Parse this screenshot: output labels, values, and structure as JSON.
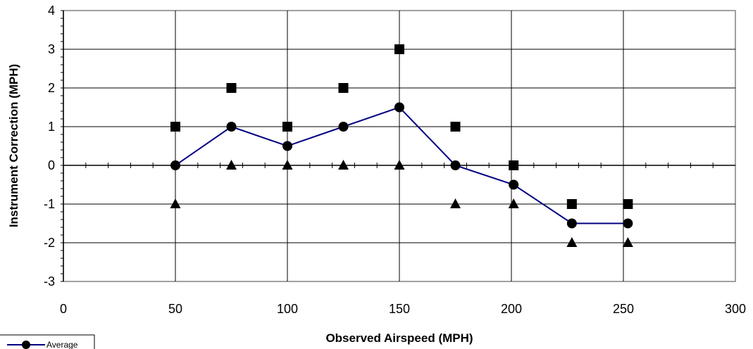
{
  "chart_data": {
    "type": "line",
    "title": "",
    "xlabel": "Observed Airspeed (MPH)",
    "ylabel": "Instrument Correction (MPH)",
    "xlim": [
      0,
      300
    ],
    "ylim": [
      -3,
      4
    ],
    "x_ticks": [
      "0",
      "50",
      "100",
      "150",
      "200",
      "250",
      "300"
    ],
    "y_ticks": [
      "-3",
      "-2",
      "-1",
      "0",
      "1",
      "2",
      "3",
      "4"
    ],
    "grid": true,
    "legend_position": "bottom-left",
    "series": [
      {
        "name": "Average",
        "marker": "circle",
        "line": true,
        "color": "#000080",
        "points": [
          [
            50,
            0
          ],
          [
            75,
            1
          ],
          [
            100,
            0.5
          ],
          [
            125,
            1
          ],
          [
            150,
            1.5
          ],
          [
            175,
            0
          ],
          [
            201,
            -0.5
          ],
          [
            227,
            -1.5
          ],
          [
            252,
            -1.5
          ]
        ]
      },
      {
        "name": "",
        "marker": "square",
        "line": false,
        "color": "#000000",
        "points": [
          [
            50,
            1
          ],
          [
            75,
            2
          ],
          [
            100,
            1
          ],
          [
            125,
            2
          ],
          [
            150,
            3
          ],
          [
            175,
            1
          ],
          [
            201,
            0
          ],
          [
            227,
            -1
          ],
          [
            252,
            -1
          ]
        ]
      },
      {
        "name": "",
        "marker": "triangle",
        "line": false,
        "color": "#000000",
        "points": [
          [
            50,
            -1
          ],
          [
            75,
            0
          ],
          [
            100,
            0
          ],
          [
            125,
            0
          ],
          [
            150,
            0
          ],
          [
            175,
            -1
          ],
          [
            201,
            -1
          ],
          [
            227,
            -2
          ],
          [
            252,
            -2
          ]
        ]
      }
    ]
  }
}
